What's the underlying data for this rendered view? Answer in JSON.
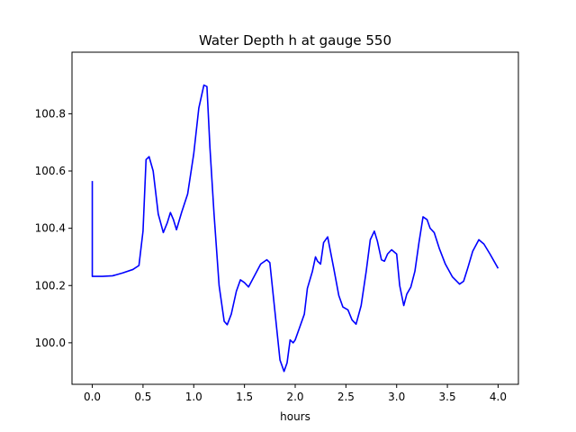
{
  "chart_data": {
    "type": "line",
    "title": "Water Depth h at gauge 550",
    "xlabel": "hours",
    "ylabel": "",
    "xlim": [
      -0.2,
      4.2
    ],
    "ylim": [
      99.855,
      101.015
    ],
    "grid": false,
    "xticks": [
      0.0,
      0.5,
      1.0,
      1.5,
      2.0,
      2.5,
      3.0,
      3.5,
      4.0
    ],
    "xtick_labels": [
      "0.0",
      "0.5",
      "1.0",
      "1.5",
      "2.0",
      "2.5",
      "3.0",
      "3.5",
      "4.0"
    ],
    "yticks": [
      100.0,
      100.2,
      100.4,
      100.6,
      100.8
    ],
    "ytick_labels": [
      "100.0",
      "100.2",
      "100.4",
      "100.6",
      "100.8"
    ],
    "series": [
      {
        "color": "#0000ff",
        "x": [
          0.0,
          0.0,
          0.01,
          0.1,
          0.2,
          0.3,
          0.4,
          0.46,
          0.5,
          0.53,
          0.56,
          0.6,
          0.65,
          0.7,
          0.74,
          0.77,
          0.8,
          0.83,
          0.88,
          0.94,
          1.0,
          1.05,
          1.1,
          1.13,
          1.16,
          1.2,
          1.25,
          1.3,
          1.33,
          1.37,
          1.42,
          1.46,
          1.5,
          1.54,
          1.6,
          1.66,
          1.72,
          1.75,
          1.8,
          1.85,
          1.89,
          1.92,
          1.95,
          1.98,
          2.0,
          2.04,
          2.09,
          2.12,
          2.17,
          2.2,
          2.22,
          2.25,
          2.28,
          2.32,
          2.38,
          2.43,
          2.47,
          2.52,
          2.56,
          2.6,
          2.65,
          2.7,
          2.74,
          2.78,
          2.81,
          2.85,
          2.88,
          2.91,
          2.95,
          3.0,
          3.03,
          3.07,
          3.1,
          3.14,
          3.18,
          3.22,
          3.26,
          3.3,
          3.33,
          3.37,
          3.42,
          3.48,
          3.55,
          3.62,
          3.66,
          3.7,
          3.75,
          3.81,
          3.86,
          3.92,
          4.0
        ],
        "y": [
          100.565,
          100.232,
          100.232,
          100.232,
          100.234,
          100.244,
          100.256,
          100.27,
          100.39,
          100.64,
          100.65,
          100.6,
          100.45,
          100.385,
          100.42,
          100.455,
          100.43,
          100.395,
          100.455,
          100.52,
          100.66,
          100.82,
          100.9,
          100.895,
          100.68,
          100.45,
          100.2,
          100.075,
          100.063,
          100.1,
          100.18,
          100.22,
          100.21,
          100.195,
          100.235,
          100.275,
          100.29,
          100.28,
          100.11,
          99.94,
          99.9,
          99.93,
          100.01,
          100.0,
          100.01,
          100.05,
          100.1,
          100.19,
          100.25,
          100.3,
          100.285,
          100.275,
          100.35,
          100.37,
          100.26,
          100.165,
          100.125,
          100.115,
          100.08,
          100.065,
          100.13,
          100.25,
          100.36,
          100.39,
          100.355,
          100.29,
          100.285,
          100.31,
          100.325,
          100.31,
          100.2,
          100.13,
          100.17,
          100.195,
          100.25,
          100.35,
          100.44,
          100.43,
          100.4,
          100.385,
          100.33,
          100.275,
          100.23,
          100.205,
          100.215,
          100.26,
          100.32,
          100.36,
          100.345,
          100.31,
          100.26
        ]
      }
    ]
  }
}
